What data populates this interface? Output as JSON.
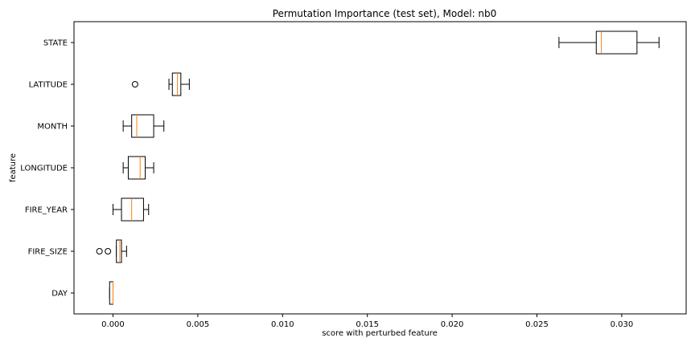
{
  "chart_data": {
    "type": "boxplot",
    "orientation": "horizontal",
    "title": "Permutation Importance (test set), Model: nb0",
    "xlabel": "score with perturbed feature",
    "ylabel": "feature",
    "xlim": [
      -0.0023,
      0.0338
    ],
    "xticks": [
      0.0,
      0.005,
      0.01,
      0.015,
      0.02,
      0.025,
      0.03
    ],
    "xtick_labels": [
      "0.000",
      "0.005",
      "0.010",
      "0.015",
      "0.020",
      "0.025",
      "0.030"
    ],
    "grid": false,
    "colors": {
      "box": "#000000",
      "median": "#ff7f0e",
      "flier": "#000000"
    },
    "categories": [
      "STATE",
      "LATITUDE",
      "MONTH",
      "LONGITUDE",
      "FIRE_YEAR",
      "FIRE_SIZE",
      "DAY"
    ],
    "boxes": [
      {
        "label": "STATE",
        "whisker_low": 0.0263,
        "q1": 0.0285,
        "median": 0.0288,
        "q3": 0.0309,
        "whisker_high": 0.0322,
        "fliers": []
      },
      {
        "label": "LATITUDE",
        "whisker_low": 0.0033,
        "q1": 0.0035,
        "median": 0.0038,
        "q3": 0.004,
        "whisker_high": 0.0045,
        "fliers": [
          0.0013
        ]
      },
      {
        "label": "MONTH",
        "whisker_low": 0.0006,
        "q1": 0.0011,
        "median": 0.0014,
        "q3": 0.0024,
        "whisker_high": 0.003,
        "fliers": []
      },
      {
        "label": "LONGITUDE",
        "whisker_low": 0.0006,
        "q1": 0.0009,
        "median": 0.0016,
        "q3": 0.0019,
        "whisker_high": 0.0024,
        "fliers": []
      },
      {
        "label": "FIRE_YEAR",
        "whisker_low": 0.0,
        "q1": 0.0005,
        "median": 0.0011,
        "q3": 0.0018,
        "whisker_high": 0.0021,
        "fliers": []
      },
      {
        "label": "FIRE_SIZE",
        "whisker_low": 0.0002,
        "q1": 0.0002,
        "median": 0.0004,
        "q3": 0.0005,
        "whisker_high": 0.0008,
        "fliers": [
          -0.0008,
          -0.0003
        ]
      },
      {
        "label": "DAY",
        "whisker_low": -0.0002,
        "q1": -0.0002,
        "median": 0.0,
        "q3": 0.0,
        "whisker_high": 0.0,
        "fliers": []
      }
    ]
  }
}
